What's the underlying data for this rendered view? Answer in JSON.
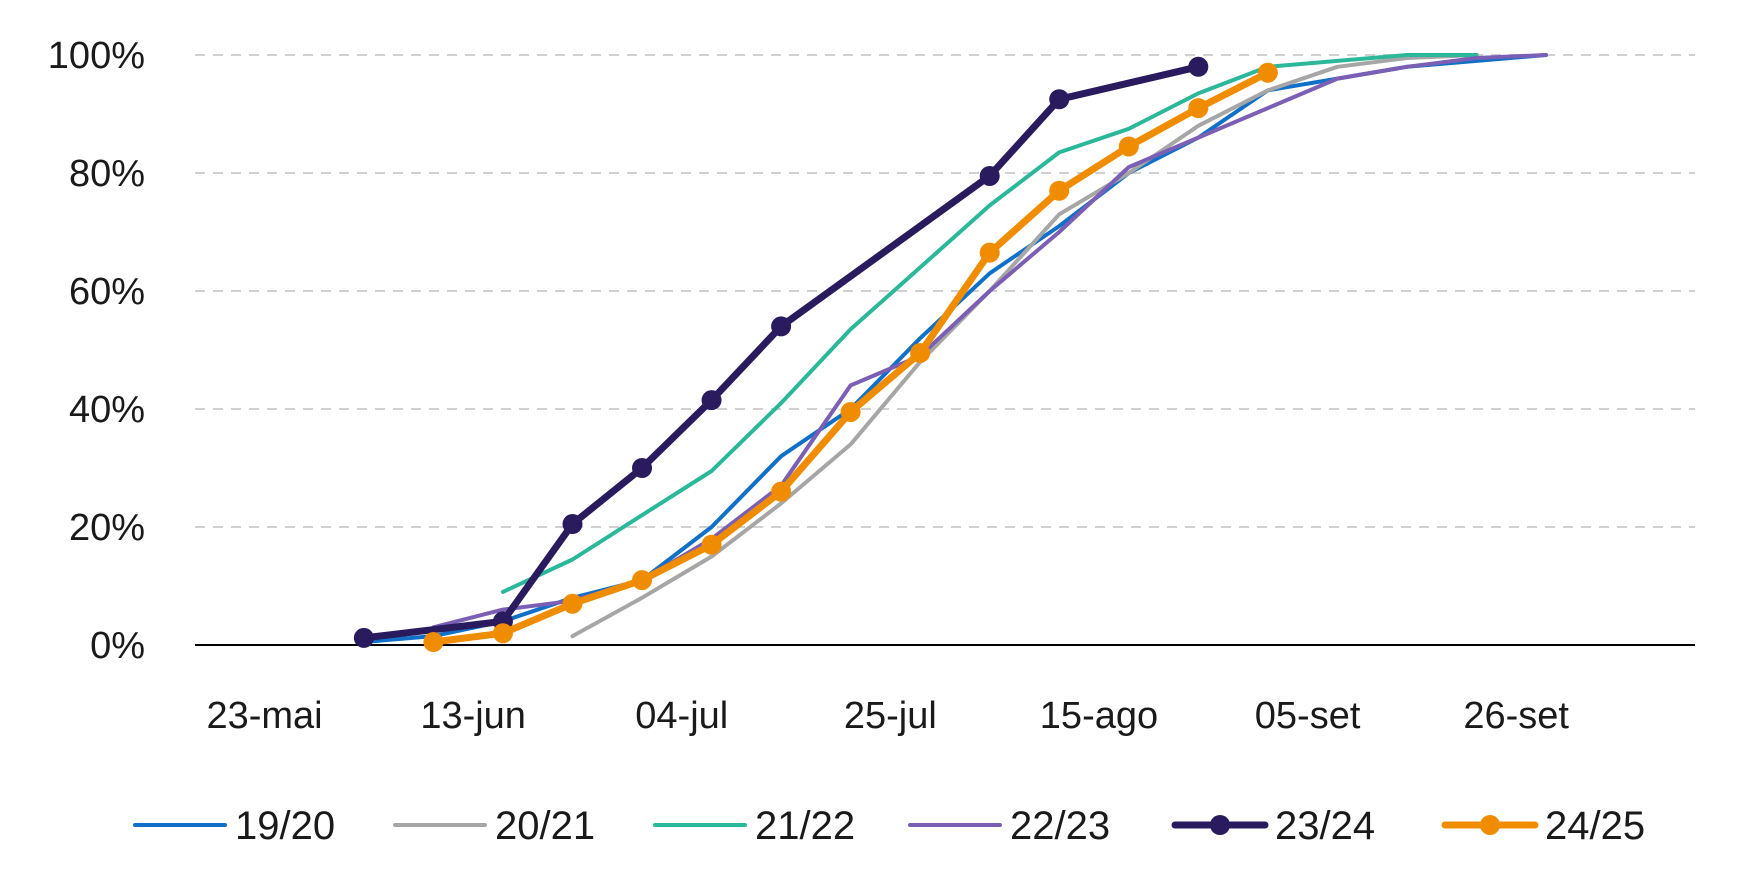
{
  "chart_data": {
    "type": "line",
    "title": "",
    "xlabel": "",
    "ylabel": "",
    "x_axis": {
      "type": "date",
      "range": [
        "2024-05-16",
        "2024-10-14"
      ],
      "tick_dates": [
        "2024-05-23",
        "2024-06-13",
        "2024-07-04",
        "2024-07-25",
        "2024-08-15",
        "2024-09-05",
        "2024-09-26"
      ],
      "tick_labels": [
        "23-mai",
        "13-jun",
        "04-jul",
        "25-jul",
        "15-ago",
        "05-set",
        "26-set"
      ]
    },
    "y_axis": {
      "range": [
        0,
        100
      ],
      "ticks": [
        0,
        20,
        40,
        60,
        80,
        100
      ],
      "tick_labels": [
        "0%",
        "20%",
        "40%",
        "60%",
        "80%",
        "100%"
      ]
    },
    "grid": "horizontal dashed",
    "legend_position": "bottom",
    "series": [
      {
        "name": "19/20",
        "color": "#1070C8",
        "markers": false,
        "x": [
          "2024-06-02",
          "2024-06-09",
          "2024-06-16",
          "2024-06-23",
          "2024-06-30",
          "2024-07-07",
          "2024-07-14",
          "2024-07-21",
          "2024-07-28",
          "2024-08-04",
          "2024-08-11",
          "2024-08-18",
          "2024-08-25",
          "2024-09-01",
          "2024-09-08",
          "2024-09-15",
          "2024-09-22",
          "2024-09-29"
        ],
        "y": [
          0.5,
          1.5,
          4,
          8,
          11,
          20,
          32,
          40,
          52,
          63,
          71,
          80,
          86,
          94,
          96,
          98,
          99,
          100
        ]
      },
      {
        "name": "20/21",
        "color": "#A6A6A6",
        "markers": false,
        "x": [
          "2024-06-23",
          "2024-06-30",
          "2024-07-07",
          "2024-07-14",
          "2024-07-21",
          "2024-07-28",
          "2024-08-04",
          "2024-08-11",
          "2024-08-18",
          "2024-08-25",
          "2024-09-01",
          "2024-09-08",
          "2024-09-15",
          "2024-09-22"
        ],
        "y": [
          1.5,
          8,
          15,
          24,
          34,
          48,
          60,
          73,
          80,
          88,
          94,
          98,
          99.5,
          100
        ]
      },
      {
        "name": "21/22",
        "color": "#2BB89A",
        "markers": false,
        "x": [
          "2024-06-16",
          "2024-06-23",
          "2024-06-30",
          "2024-07-07",
          "2024-07-14",
          "2024-07-21",
          "2024-07-28",
          "2024-08-04",
          "2024-08-11",
          "2024-08-18",
          "2024-08-25",
          "2024-09-01",
          "2024-09-08",
          "2024-09-15",
          "2024-09-22"
        ],
        "y": [
          9,
          14.5,
          22,
          29.5,
          41,
          53.5,
          64,
          74.5,
          83.5,
          87.5,
          93.5,
          98,
          99,
          100,
          100
        ]
      },
      {
        "name": "22/23",
        "color": "#7B5FB5",
        "markers": false,
        "x": [
          "2024-06-09",
          "2024-06-16",
          "2024-06-23",
          "2024-06-30",
          "2024-07-07",
          "2024-07-14",
          "2024-07-21",
          "2024-07-28",
          "2024-08-04",
          "2024-08-11",
          "2024-08-18",
          "2024-08-25",
          "2024-09-01",
          "2024-09-08",
          "2024-09-15",
          "2024-09-22",
          "2024-09-29"
        ],
        "y": [
          3,
          6,
          7.5,
          11,
          18,
          27,
          44,
          49,
          60,
          70,
          81,
          86,
          91,
          96,
          98,
          99.5,
          100
        ]
      },
      {
        "name": "23/24",
        "color": "#2A1A5E",
        "markers": true,
        "x": [
          "2024-06-02",
          "2024-06-16",
          "2024-06-23",
          "2024-06-30",
          "2024-07-07",
          "2024-07-14",
          "2024-08-04",
          "2024-08-11",
          "2024-08-25"
        ],
        "y": [
          1.2,
          4,
          20.5,
          30,
          41.5,
          54,
          79.5,
          92.5,
          98
        ]
      },
      {
        "name": "24/25",
        "color": "#F08C00",
        "markers": true,
        "x": [
          "2024-06-09",
          "2024-06-16",
          "2024-06-23",
          "2024-06-30",
          "2024-07-07",
          "2024-07-14",
          "2024-07-21",
          "2024-07-28",
          "2024-08-04",
          "2024-08-11",
          "2024-08-18",
          "2024-08-25",
          "2024-09-01"
        ],
        "y": [
          0.5,
          2,
          7,
          11,
          17,
          26,
          39.5,
          49.5,
          66.5,
          77,
          84.5,
          91,
          97
        ]
      }
    ]
  }
}
